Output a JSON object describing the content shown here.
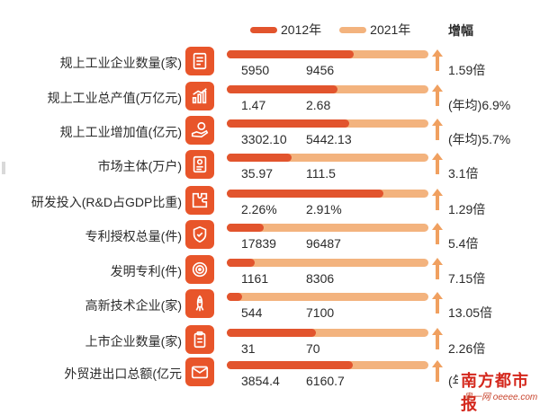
{
  "chart_data": {
    "type": "bar",
    "orientation": "horizontal",
    "legend_position": "top",
    "categories": [
      "规上工业企业数量(家)",
      "规上工业总产值(万亿元)",
      "规上工业增加值(亿元)",
      "市场主体(万户)",
      "研发投入(R&D占GDP比重)",
      "专利授权总量(件)",
      "发明专利(件)",
      "高新技术企业(家)",
      "上市企业数量(家)",
      "外贸进出口总额(亿元"
    ],
    "series": [
      {
        "name": "2012年",
        "color": "#e2542d",
        "values": [
          5950,
          1.47,
          3302.1,
          35.97,
          2.26,
          17839,
          1161,
          544,
          31,
          3854.4
        ]
      },
      {
        "name": "2021年",
        "color": "#f3b37e",
        "values": [
          9456,
          2.68,
          5442.13,
          111.5,
          2.91,
          96487,
          8306,
          7100,
          70,
          6160.7
        ]
      }
    ],
    "value_labels_2012": [
      "5950",
      "1.47",
      "3302.10",
      "35.97",
      "2.26%",
      "17839",
      "1161",
      "544",
      "31",
      "3854.4"
    ],
    "value_labels_2021": [
      "9456",
      "2.68",
      "5442.13",
      "111.5",
      "2.91%",
      "96487",
      "8306",
      "7100",
      "70",
      "6160.7"
    ],
    "growth_header": "增幅",
    "growth": [
      "1.59倍",
      "(年均)6.9%",
      "(年均)5.7%",
      "3.1倍",
      "1.29倍",
      "5.4倍",
      "7.15倍",
      "13.05倍",
      "2.26倍",
      "(年"
    ],
    "icons": [
      "document-list-icon",
      "bar-growth-icon",
      "hand-coin-icon",
      "id-card-icon",
      "puzzle-icon",
      "shield-check-icon",
      "target-icon",
      "rocket-icon",
      "clipboard-icon",
      "envelope-icon"
    ]
  },
  "watermark": {
    "title": "南方都市报",
    "sub": "奥一网 oeeee.com"
  }
}
